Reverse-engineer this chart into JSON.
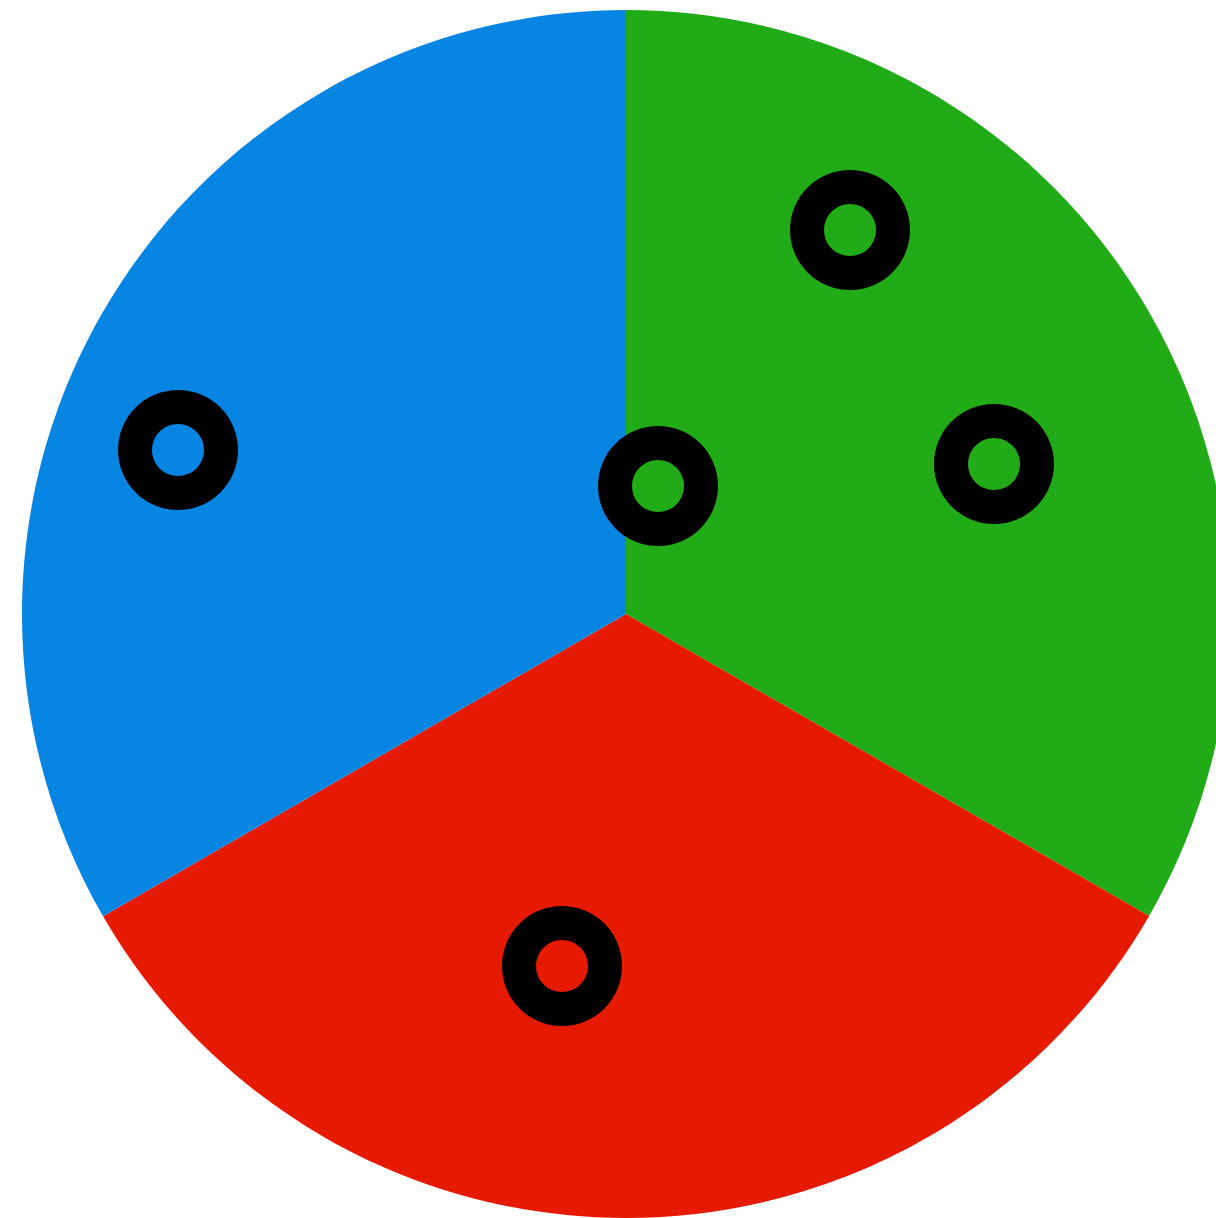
{
  "chart_data": {
    "type": "pie",
    "categories": [
      null,
      null,
      null
    ],
    "values": [
      33.33,
      33.33,
      33.34
    ],
    "colors": [
      "#21ab16",
      "#e51a00",
      "#0785e2"
    ]
  }
}
